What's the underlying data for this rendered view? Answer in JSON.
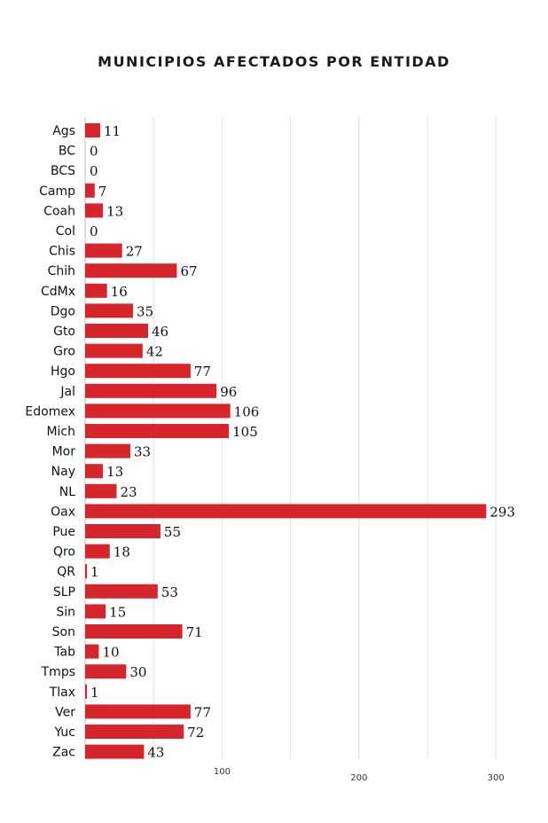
{
  "chart_data": {
    "type": "bar",
    "orientation": "horizontal",
    "title": "MUNICIPIOS AFECTADOS POR ENTIDAD",
    "xlabel": "",
    "ylabel": "",
    "categories": [
      "Ags",
      "BC",
      "BCS",
      "Camp",
      "Coah",
      "Col",
      "Chis",
      "Chih",
      "CdMx",
      "Dgo",
      "Gto",
      "Gro",
      "Hgo",
      "Jal",
      "Edomex",
      "Mich",
      "Mor",
      "Nay",
      "NL",
      "Oax",
      "Pue",
      "Qro",
      "QR",
      "SLP",
      "Sin",
      "Son",
      "Tab",
      "Tmps",
      "Tlax",
      "Ver",
      "Yuc",
      "Zac"
    ],
    "values": [
      11,
      0,
      0,
      7,
      13,
      0,
      27,
      67,
      16,
      35,
      46,
      42,
      77,
      96,
      106,
      105,
      33,
      13,
      23,
      293,
      55,
      18,
      1,
      53,
      15,
      71,
      10,
      30,
      1,
      77,
      72,
      43
    ],
    "xticks": [
      100,
      200,
      300
    ],
    "xlim": [
      0,
      300
    ],
    "grid": true,
    "bar_color": "#d7252c"
  }
}
